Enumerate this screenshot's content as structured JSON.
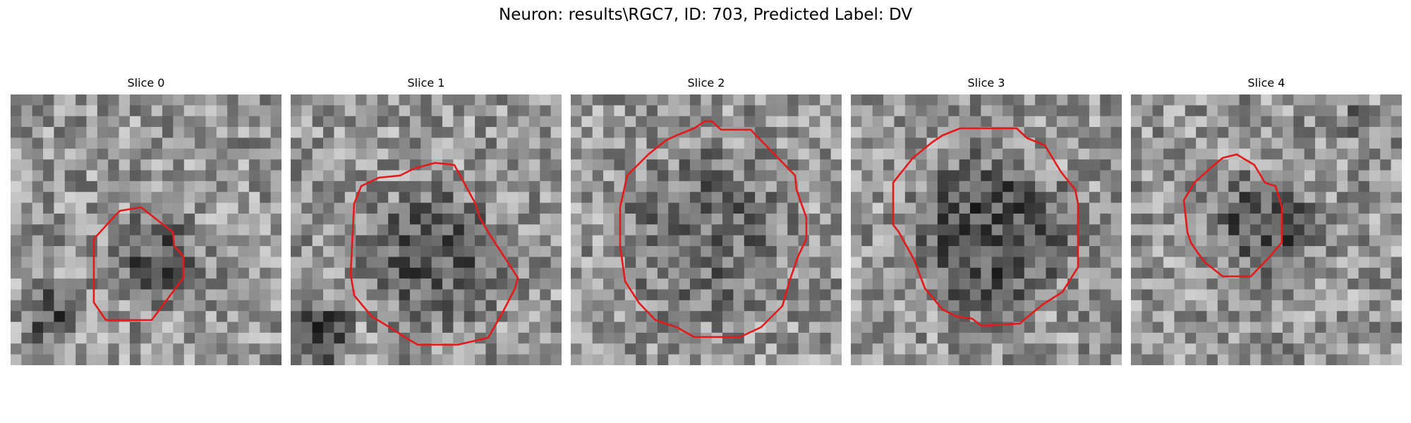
{
  "figure": {
    "title": "Neuron: results\\RGC7, ID: 703, Predicted Label: DV"
  },
  "panels": [
    {
      "title": "Slice 0"
    },
    {
      "title": "Slice 1"
    },
    {
      "title": "Slice 2"
    },
    {
      "title": "Slice 3"
    },
    {
      "title": "Slice 4"
    }
  ],
  "colors": {
    "contour": "#e41a1a",
    "image_colormap": "gray"
  }
}
